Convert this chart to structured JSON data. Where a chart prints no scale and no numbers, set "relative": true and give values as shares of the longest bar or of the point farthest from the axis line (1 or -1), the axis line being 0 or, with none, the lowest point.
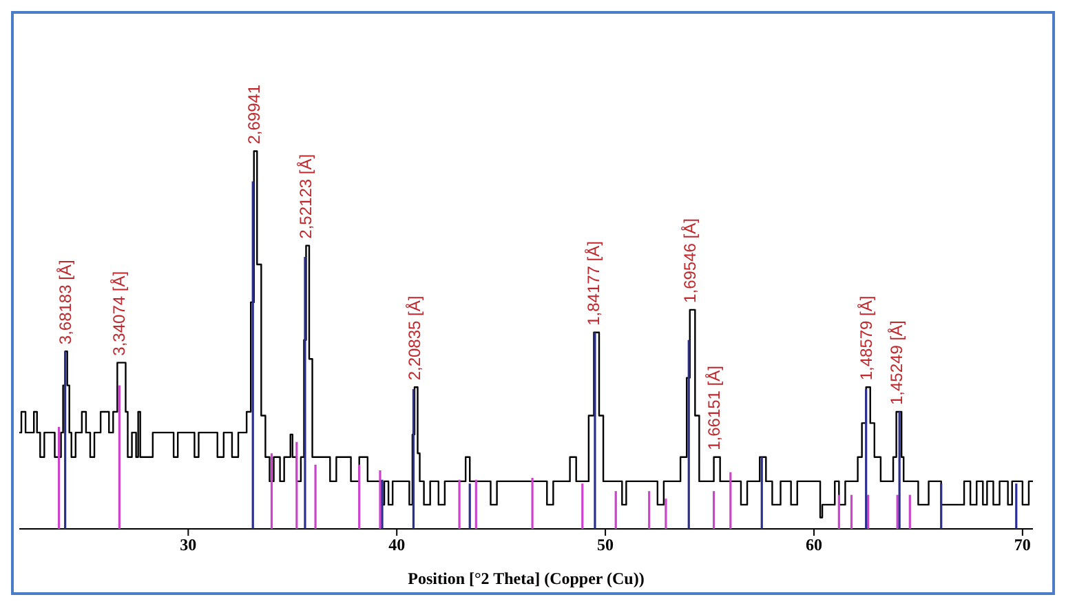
{
  "chart_data": {
    "type": "step",
    "relative": true,
    "xlabel": "Position [°2 Theta] (Copper (Cu))",
    "xlim": [
      21.9,
      70.5
    ],
    "xticks": [
      30,
      40,
      50,
      60,
      70
    ],
    "grid": false,
    "marker": "none",
    "series": [
      {
        "color": "#000000",
        "x": [
          21.9,
          22.0,
          22.2,
          22.6,
          22.75,
          22.9,
          23.1,
          23.6,
          23.9,
          24.0,
          24.1,
          24.2,
          24.3,
          24.4,
          24.6,
          24.9,
          25.1,
          25.3,
          25.5,
          25.8,
          26.2,
          26.4,
          26.6,
          26.8,
          27.0,
          27.1,
          27.3,
          27.5,
          27.6,
          27.7,
          28.3,
          29.3,
          29.5,
          30.3,
          30.5,
          31.4,
          31.7,
          32.1,
          32.4,
          32.8,
          33.0,
          33.15,
          33.3,
          33.5,
          33.7,
          33.9,
          34.1,
          34.4,
          34.6,
          34.9,
          35.0,
          35.2,
          35.4,
          35.55,
          35.65,
          35.8,
          35.95,
          36.8,
          37.1,
          37.8,
          38.2,
          38.6,
          39.3,
          39.4,
          39.6,
          39.8,
          40.6,
          40.75,
          40.85,
          41.0,
          41.1,
          41.3,
          41.6,
          42.0,
          42.3,
          43.3,
          43.5,
          44.5,
          44.8,
          47.2,
          47.5,
          48.3,
          48.6,
          49.2,
          49.45,
          49.7,
          49.9,
          50.8,
          51.0,
          52.5,
          52.8,
          53.6,
          53.9,
          54.05,
          54.3,
          54.5,
          55.2,
          55.5,
          56.5,
          56.8,
          57.4,
          57.7,
          58.0,
          58.4,
          58.9,
          59.2,
          60.3,
          60.4,
          61.0,
          61.2,
          61.5,
          62.1,
          62.3,
          62.5,
          62.7,
          62.9,
          63.2,
          63.8,
          63.95,
          64.2,
          64.3,
          65.0,
          65.5,
          66.1,
          67.2,
          67.5,
          67.8,
          68.1,
          68.3,
          68.6,
          68.9,
          69.3,
          69.5,
          70.0,
          70.3,
          70.5
        ],
        "values": [
          0.255,
          0.31,
          0.255,
          0.31,
          0.255,
          0.19,
          0.255,
          0.19,
          0.255,
          0.38,
          0.47,
          0.38,
          0.255,
          0.19,
          0.255,
          0.31,
          0.255,
          0.19,
          0.255,
          0.31,
          0.255,
          0.31,
          0.44,
          0.44,
          0.31,
          0.19,
          0.255,
          0.19,
          0.31,
          0.19,
          0.255,
          0.19,
          0.255,
          0.19,
          0.255,
          0.19,
          0.255,
          0.19,
          0.255,
          0.31,
          0.6,
          1.0,
          0.7,
          0.3,
          0.19,
          0.126,
          0.19,
          0.126,
          0.19,
          0.25,
          0.19,
          0.126,
          0.19,
          0.5,
          0.75,
          0.45,
          0.19,
          0.126,
          0.19,
          0.126,
          0.19,
          0.126,
          0.064,
          0.126,
          0.064,
          0.126,
          0.064,
          0.25,
          0.375,
          0.2,
          0.126,
          0.064,
          0.126,
          0.064,
          0.126,
          0.19,
          0.126,
          0.064,
          0.126,
          0.064,
          0.126,
          0.19,
          0.126,
          0.3,
          0.52,
          0.3,
          0.126,
          0.064,
          0.126,
          0.064,
          0.126,
          0.19,
          0.4,
          0.58,
          0.3,
          0.126,
          0.19,
          0.126,
          0.064,
          0.126,
          0.19,
          0.126,
          0.064,
          0.126,
          0.064,
          0.126,
          0.03,
          0.064,
          0.126,
          0.064,
          0.126,
          0.19,
          0.28,
          0.375,
          0.28,
          0.19,
          0.126,
          0.19,
          0.31,
          0.19,
          0.126,
          0.064,
          0.126,
          0.064,
          0.126,
          0.064,
          0.126,
          0.064,
          0.126,
          0.064,
          0.126,
          0.064,
          0.126,
          0.064,
          0.126,
          0.126
        ]
      },
      {
        "type": "bar",
        "color": "#cc44cc",
        "x": [
          23.8,
          26.7,
          34.0,
          35.2,
          36.1,
          38.2,
          39.2,
          43.0,
          43.8,
          46.5,
          48.9,
          50.5,
          52.1,
          52.9,
          55.2,
          56.0,
          61.2,
          61.8,
          62.6,
          64.0,
          64.6
        ],
        "values": [
          0.27,
          0.38,
          0.2,
          0.23,
          0.17,
          0.17,
          0.155,
          0.13,
          0.13,
          0.135,
          0.12,
          0.1,
          0.1,
          0.08,
          0.1,
          0.15,
          0.09,
          0.09,
          0.09,
          0.09,
          0.09
        ]
      },
      {
        "type": "bar",
        "color": "#2b2f8f",
        "x": [
          24.1,
          33.1,
          35.6,
          39.3,
          40.8,
          43.5,
          49.5,
          54.0,
          57.5,
          62.5,
          64.1,
          66.1,
          69.7
        ],
        "values": [
          0.47,
          0.92,
          0.72,
          0.13,
          0.37,
          0.12,
          0.52,
          0.5,
          0.19,
          0.37,
          0.31,
          0.12,
          0.12
        ]
      }
    ],
    "annotations": [
      {
        "text": "3,68183 [Å]",
        "x": 24.1,
        "y": 0.47
      },
      {
        "text": "3,34074 [Å]",
        "x": 26.7,
        "y": 0.44
      },
      {
        "text": "2,69941",
        "x": 33.15,
        "y": 1.0
      },
      {
        "text": "2,52123 [Å]",
        "x": 35.65,
        "y": 0.75
      },
      {
        "text": "2,20835 [Å]",
        "x": 40.85,
        "y": 0.375
      },
      {
        "text": "1,84177 [Å]",
        "x": 49.45,
        "y": 0.52
      },
      {
        "text": "1,69546 [Å]",
        "x": 54.05,
        "y": 0.58
      },
      {
        "text": "1,66151 [Å]",
        "x": 55.2,
        "y": 0.19
      },
      {
        "text": "1,48579 [Å]",
        "x": 62.5,
        "y": 0.375
      },
      {
        "text": "1,45249 [Å]",
        "x": 63.95,
        "y": 0.31
      }
    ]
  }
}
